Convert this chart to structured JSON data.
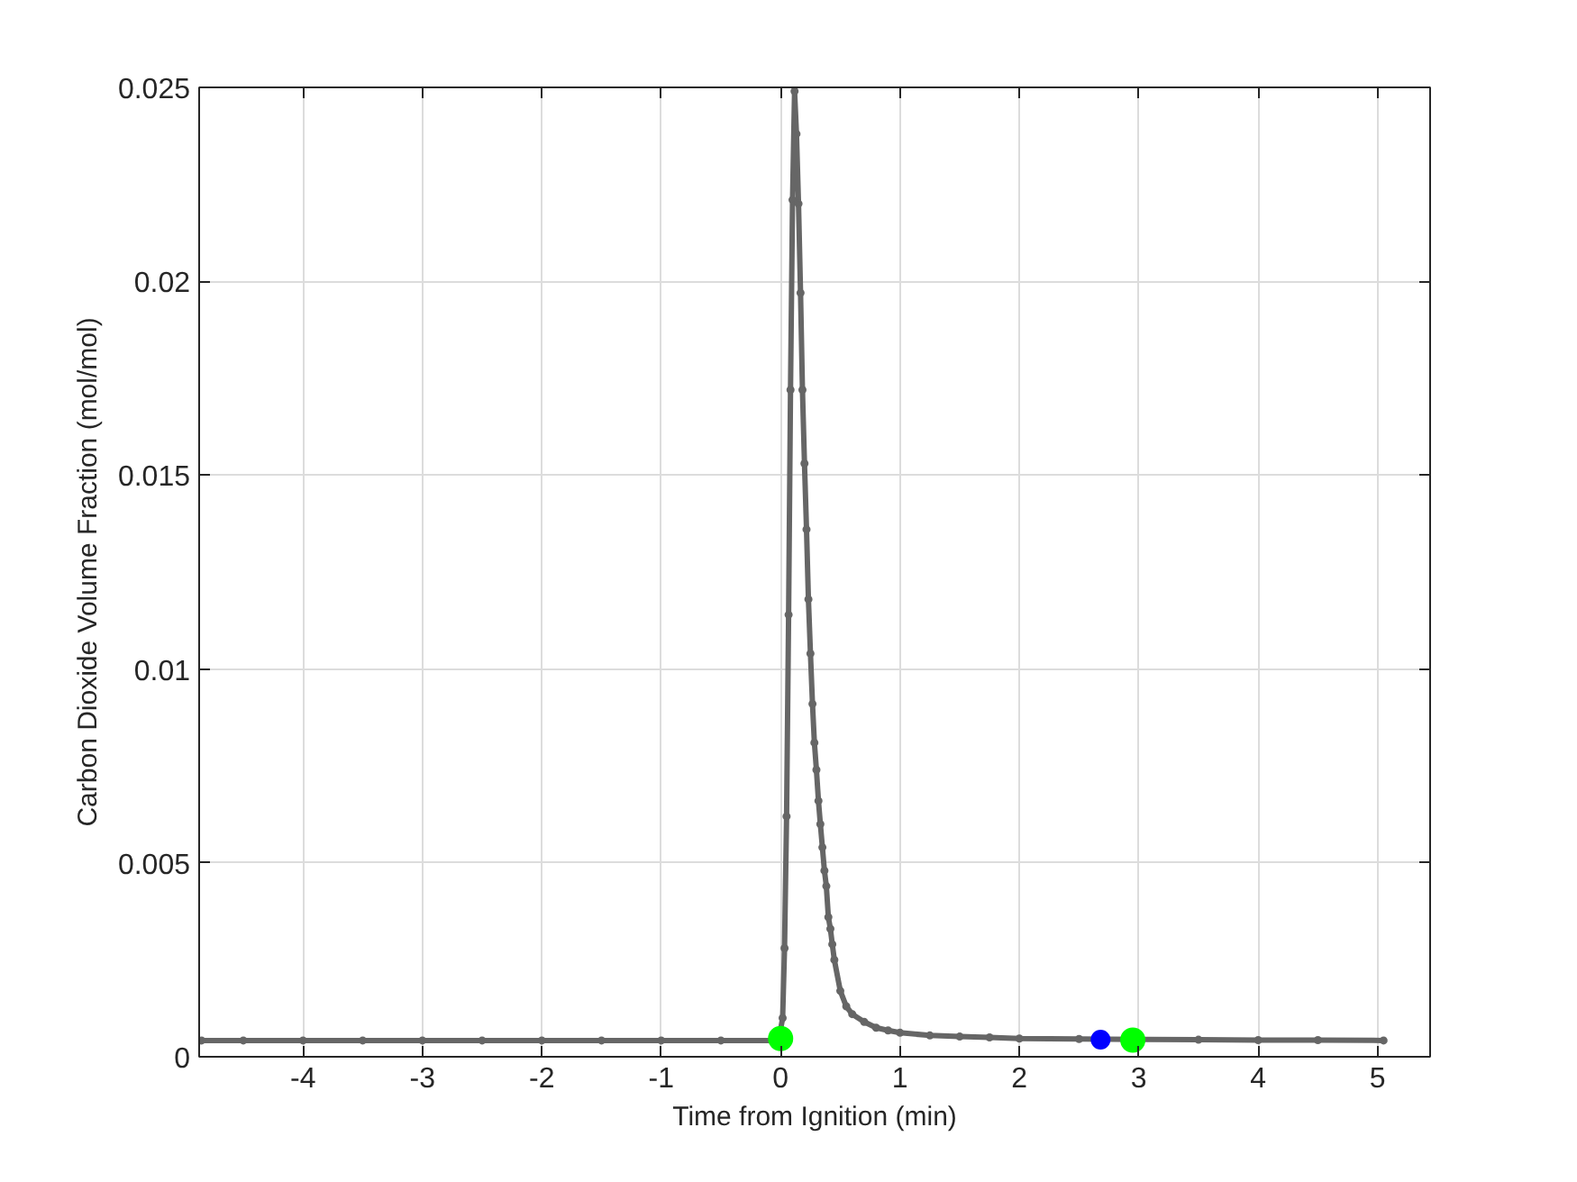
{
  "chart_data": {
    "type": "line",
    "xlabel": "Time from Ignition (min)",
    "ylabel": "Carbon Dioxide Volume Fraction (mol/mol)",
    "xlim": [
      -4.87,
      5.44
    ],
    "ylim": [
      0,
      0.025
    ],
    "xticks": [
      -4,
      -3,
      -2,
      -1,
      0,
      1,
      2,
      3,
      4,
      5
    ],
    "yticks": [
      0,
      0.005,
      0.01,
      0.015,
      0.02,
      0.025
    ],
    "grid": true,
    "marker": "circle",
    "line_style": "solid",
    "series": [
      {
        "color": "#666666",
        "x": [
          -4.85,
          -4.5,
          -4,
          -3.5,
          -3,
          -2.5,
          -2,
          -1.5,
          -1,
          -0.5,
          -0.017,
          0.017,
          0.033,
          0.05,
          0.067,
          0.083,
          0.1,
          0.117,
          0.133,
          0.15,
          0.167,
          0.183,
          0.2,
          0.217,
          0.233,
          0.25,
          0.267,
          0.283,
          0.3,
          0.317,
          0.333,
          0.35,
          0.367,
          0.383,
          0.4,
          0.417,
          0.433,
          0.45,
          0.5,
          0.55,
          0.6,
          0.7,
          0.8,
          0.9,
          1.0,
          1.25,
          1.5,
          1.75,
          2.0,
          2.5,
          3.0,
          3.5,
          4.0,
          4.5,
          5.05
        ],
        "values": [
          0.00042,
          0.00042,
          0.00042,
          0.00042,
          0.00042,
          0.00042,
          0.00042,
          0.00042,
          0.00042,
          0.00042,
          0.00042,
          0.001,
          0.0028,
          0.0062,
          0.0114,
          0.0172,
          0.0221,
          0.0249,
          0.0238,
          0.022,
          0.0197,
          0.0172,
          0.0153,
          0.0136,
          0.0118,
          0.0104,
          0.0091,
          0.0081,
          0.0074,
          0.0066,
          0.006,
          0.0054,
          0.0048,
          0.0044,
          0.0036,
          0.0033,
          0.0029,
          0.0025,
          0.0017,
          0.0013,
          0.0011,
          0.0009,
          0.00075,
          0.00068,
          0.00062,
          0.00055,
          0.00052,
          0.0005,
          0.00047,
          0.00046,
          0.00045,
          0.00044,
          0.00043,
          0.00043,
          0.00042
        ]
      },
      {
        "type": "scatter",
        "color": "#00ff00",
        "x": [
          0,
          2.95
        ],
        "values": [
          0.00047,
          0.00043
        ]
      },
      {
        "type": "scatter",
        "color": "#0000ff",
        "x": [
          2.68
        ],
        "values": [
          0.00044
        ]
      }
    ]
  }
}
